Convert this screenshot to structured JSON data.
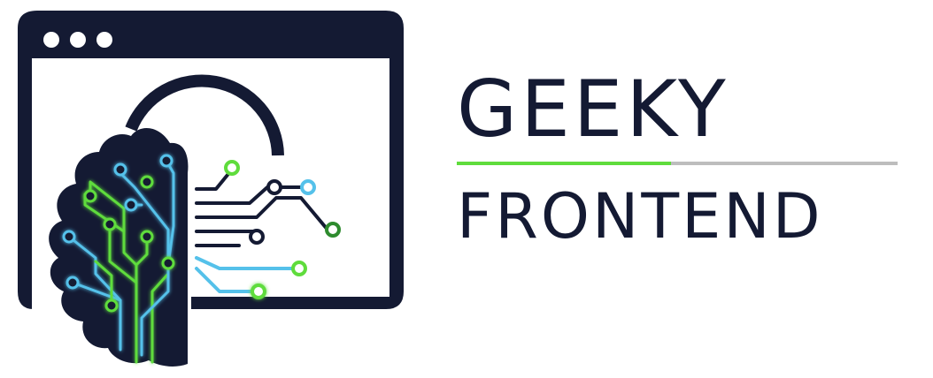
{
  "brand": {
    "line1": "GEEKY",
    "line2": "FRONTEND"
  },
  "icons": {
    "logo": "browser-window-with-circuit-brain-icon"
  },
  "colors": {
    "navy": "#141a33",
    "green": "#5fdc3c",
    "blue": "#55c1ea",
    "gray": "#bdbdbd",
    "background": "#ffffff"
  }
}
